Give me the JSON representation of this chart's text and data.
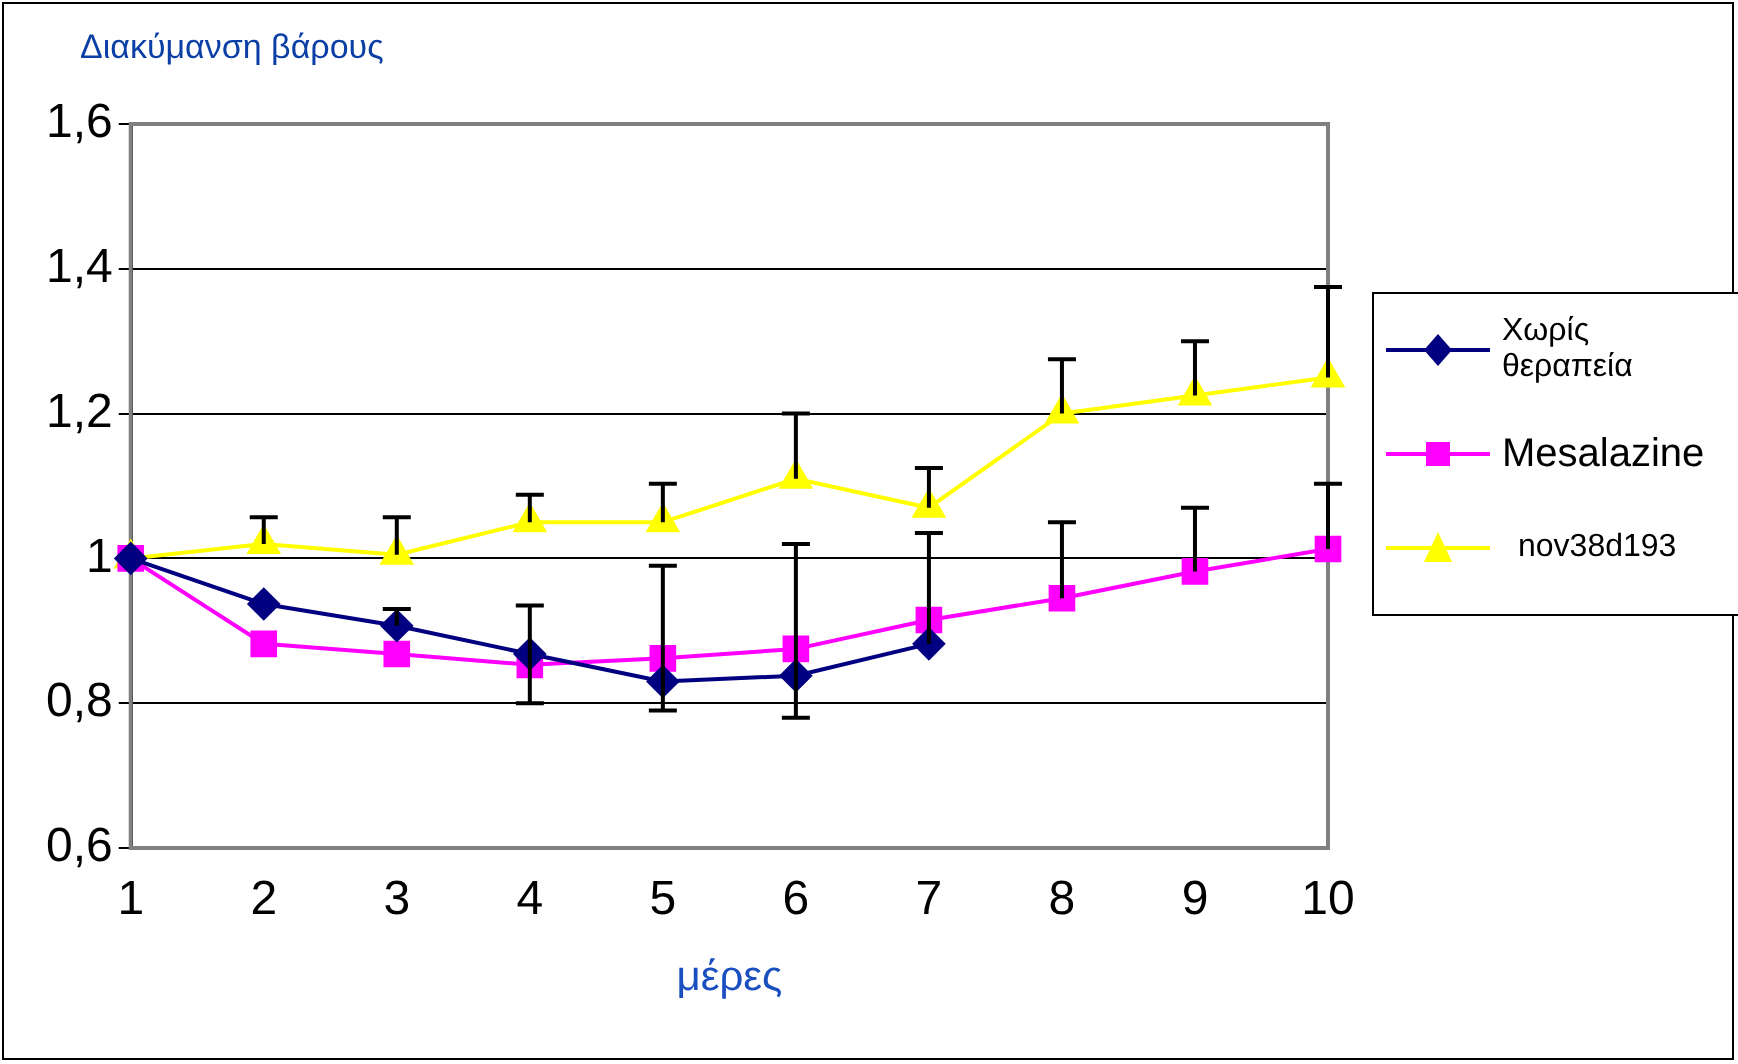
{
  "chart_data": {
    "type": "line",
    "title": "Διακύμανση βάρους",
    "xlabel": "μέρες",
    "categories": [
      "1",
      "2",
      "3",
      "4",
      "5",
      "6",
      "7",
      "8",
      "9",
      "10"
    ],
    "ylim": [
      0.6,
      1.6
    ],
    "yticks": [
      {
        "value": 0.6,
        "label": "0,6"
      },
      {
        "value": 0.8,
        "label": "0,8"
      },
      1,
      {
        "value": 1.2,
        "label": "1,2"
      },
      {
        "value": 1.4,
        "label": "1,4"
      },
      {
        "value": 1.6,
        "label": "1,6"
      }
    ],
    "grid": "y",
    "legend": "right",
    "series": [
      {
        "name": "Χωρίς θεραπεία",
        "color": "#000080",
        "marker": "diamond",
        "values": [
          1,
          0.937,
          0.907,
          0.868,
          0.83,
          0.838,
          0.882,
          null,
          null,
          null
        ],
        "errors": [
          null,
          null,
          [
            0.907,
            0.93
          ],
          [
            0.8,
            0.935
          ],
          [
            0.79,
            0.99
          ],
          [
            0.78,
            1.02
          ],
          [
            0.882,
            1.035
          ],
          null,
          null,
          null
        ]
      },
      {
        "name": "Mesalazine",
        "color": "#ff00ff",
        "marker": "square",
        "values": [
          1,
          0.882,
          0.868,
          0.853,
          0.862,
          0.875,
          0.915,
          0.945,
          0.982,
          1.013
        ],
        "errors": [
          null,
          null,
          null,
          null,
          null,
          null,
          null,
          [
            0.945,
            1.05
          ],
          [
            0.982,
            1.07
          ],
          [
            1.013,
            1.103
          ]
        ]
      },
      {
        "name": "nov38d193",
        "color": "#ffff00",
        "marker": "triangle",
        "values": [
          1,
          1.02,
          1.005,
          1.05,
          1.05,
          1.11,
          1.07,
          1.2,
          1.225,
          1.25
        ],
        "errors": [
          null,
          [
            1.02,
            1.057
          ],
          [
            1.005,
            1.057
          ],
          [
            1.05,
            1.088
          ],
          [
            1.05,
            1.103
          ],
          [
            1.11,
            1.2
          ],
          [
            1.07,
            1.125
          ],
          [
            1.2,
            1.275
          ],
          [
            1.225,
            1.3
          ],
          [
            1.25,
            1.375
          ]
        ]
      }
    ]
  }
}
